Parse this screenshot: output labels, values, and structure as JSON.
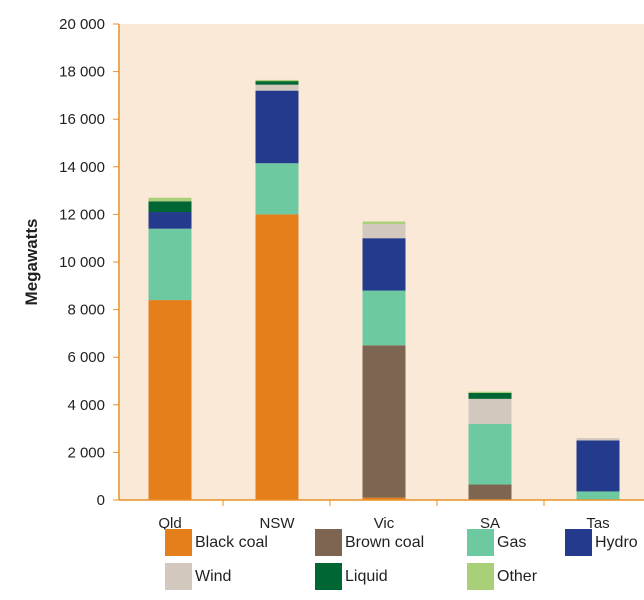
{
  "chart_data": {
    "type": "bar",
    "stacked": true,
    "ylabel": "Megawatts",
    "xlabel": "",
    "ylim": [
      0,
      20000
    ],
    "yticks": [
      0,
      2000,
      4000,
      6000,
      8000,
      10000,
      12000,
      14000,
      16000,
      18000,
      20000
    ],
    "ytick_labels": [
      "0",
      "2 000",
      "4 000",
      "6 000",
      "8 000",
      "10 000",
      "12 000",
      "14 000",
      "16 000",
      "18 000",
      "20 000"
    ],
    "categories": [
      "Qld",
      "NSW",
      "Vic",
      "SA",
      "Tas"
    ],
    "grid": false,
    "plot_background": "#fbe9d7",
    "axis_color": "#e8912a",
    "legend_position": "bottom",
    "series": [
      {
        "name": "Black coal",
        "color": "#e57f1c",
        "values": [
          8400,
          12000,
          100,
          0,
          0
        ]
      },
      {
        "name": "Brown coal",
        "color": "#7d6552",
        "values": [
          0,
          0,
          6400,
          650,
          0
        ]
      },
      {
        "name": "Gas",
        "color": "#6dc9a0",
        "values": [
          3000,
          2150,
          2300,
          2550,
          360
        ]
      },
      {
        "name": "Hydro",
        "color": "#243a8c",
        "values": [
          700,
          3050,
          2200,
          0,
          2140
        ]
      },
      {
        "name": "Wind",
        "color": "#d2c8bd",
        "values": [
          0,
          250,
          600,
          1050,
          100
        ]
      },
      {
        "name": "Liquid",
        "color": "#006633",
        "values": [
          450,
          150,
          0,
          250,
          0
        ]
      },
      {
        "name": "Other",
        "color": "#a9cf78",
        "values": [
          150,
          50,
          100,
          50,
          0
        ]
      }
    ],
    "legend_rows": [
      [
        "Black coal",
        "Brown coal",
        "Gas",
        "Hydro"
      ],
      [
        "Wind",
        "Liquid",
        "Other"
      ]
    ]
  }
}
